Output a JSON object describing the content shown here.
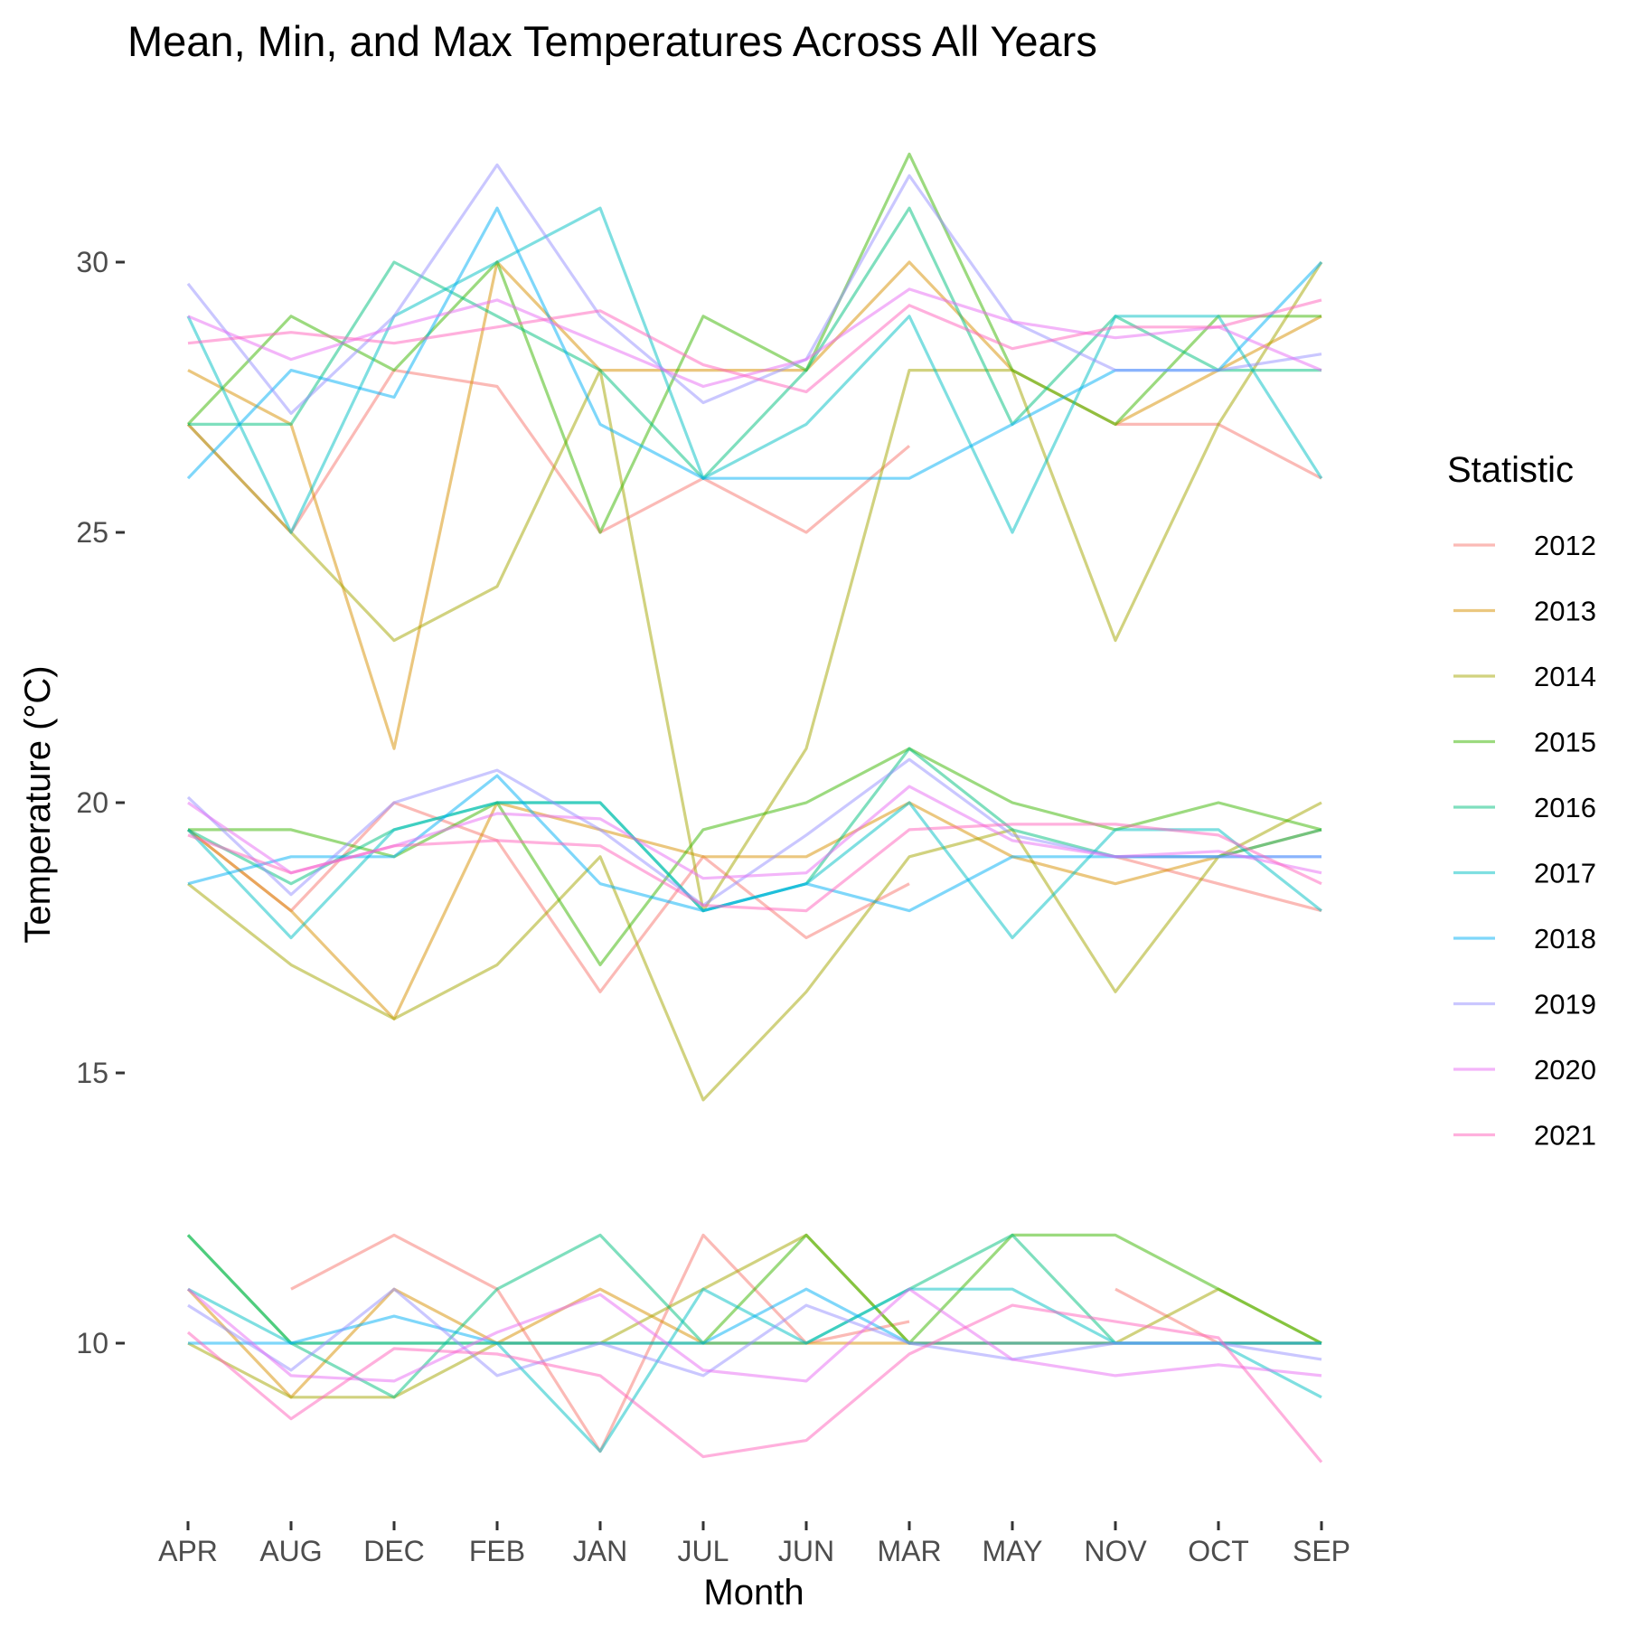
{
  "chart_data": {
    "type": "line",
    "title": "Mean, Min, and Max Temperatures Across All Years",
    "xlabel": "Month",
    "ylabel": "Temperature (°C)",
    "ylim": [
      7.2,
      33.6
    ],
    "yticks": [
      10,
      15,
      20,
      25,
      30
    ],
    "grid": false,
    "legend": {
      "title": "Statistic",
      "position": "right"
    },
    "categories": [
      "APR",
      "AUG",
      "DEC",
      "FEB",
      "JAN",
      "JUL",
      "JUN",
      "MAR",
      "MAY",
      "NOV",
      "OCT",
      "SEP"
    ],
    "series": [
      {
        "name": "2012",
        "color": "#F8766D",
        "max": [
          27,
          25,
          28,
          27.7,
          25,
          26,
          25,
          26.6,
          null,
          27,
          27,
          26
        ],
        "mean": [
          19.5,
          18,
          20,
          19.3,
          16.5,
          19,
          17.5,
          18.5,
          null,
          19,
          18.5,
          18
        ],
        "min": [
          null,
          11,
          12,
          11,
          8,
          12,
          10,
          10.4,
          null,
          11,
          10,
          10
        ]
      },
      {
        "name": "2013",
        "color": "#D89000",
        "max": [
          28,
          27,
          21,
          30,
          28,
          28,
          28,
          30,
          28,
          27,
          28,
          29
        ],
        "mean": [
          19.5,
          18,
          16,
          20,
          19.5,
          19,
          19,
          20,
          19,
          18.5,
          19,
          19.5
        ],
        "min": [
          11,
          9,
          11,
          10,
          11,
          10,
          10,
          10,
          10,
          10,
          10,
          10
        ]
      },
      {
        "name": "2014",
        "color": "#A3A500",
        "max": [
          27,
          25,
          23,
          24,
          28,
          18,
          21,
          28,
          28,
          23,
          27,
          30
        ],
        "mean": [
          18.5,
          17,
          16,
          17,
          19,
          14.5,
          16.5,
          19,
          19.5,
          16.5,
          19,
          20
        ],
        "min": [
          10,
          9,
          9,
          10,
          10,
          11,
          12,
          10,
          10,
          10,
          11,
          10
        ]
      },
      {
        "name": "2015",
        "color": "#39B600",
        "max": [
          27,
          29,
          28,
          30,
          25,
          29,
          28,
          32,
          28,
          27,
          29,
          29
        ],
        "mean": [
          19.5,
          19.5,
          19,
          20,
          17,
          19.5,
          20,
          21,
          20,
          19.5,
          20,
          19.5
        ],
        "min": [
          12,
          10,
          10,
          10,
          10,
          10,
          12,
          10,
          12,
          12,
          11,
          10
        ]
      },
      {
        "name": "2016",
        "color": "#00BF7D",
        "max": [
          27,
          27,
          30,
          29,
          28,
          26,
          28,
          31,
          27,
          29,
          28,
          28
        ],
        "mean": [
          19.5,
          18.5,
          19.5,
          20,
          20,
          18,
          18.5,
          21,
          19.5,
          19,
          19,
          19.5
        ],
        "min": [
          12,
          10,
          9,
          11,
          12,
          10,
          10,
          11,
          12,
          10,
          10,
          10
        ]
      },
      {
        "name": "2017",
        "color": "#00BFC4",
        "max": [
          29,
          25,
          29,
          30,
          31,
          26,
          27,
          29,
          25,
          29,
          29,
          26
        ],
        "mean": [
          19.5,
          17.5,
          19.5,
          20,
          20,
          18,
          18.5,
          20,
          17.5,
          19.5,
          19.5,
          18
        ],
        "min": [
          11,
          10,
          10,
          10,
          8,
          11,
          10,
          11,
          11,
          10,
          10,
          9
        ]
      },
      {
        "name": "2018",
        "color": "#00B0F6",
        "max": [
          26,
          28,
          27.5,
          31,
          27,
          26,
          26,
          26,
          27,
          28,
          28,
          30
        ],
        "mean": [
          18.5,
          19,
          19,
          20.5,
          18.5,
          18,
          18.5,
          18,
          19,
          19,
          19,
          19
        ],
        "min": [
          10,
          10,
          10.5,
          10,
          10,
          10,
          11,
          10,
          10,
          10,
          10,
          10
        ]
      },
      {
        "name": "2019",
        "color": "#9590FF",
        "max": [
          29.6,
          27.2,
          29,
          31.8,
          29,
          27.4,
          28.2,
          31.6,
          28.9,
          28,
          28,
          28.3
        ],
        "mean": [
          20.1,
          18.3,
          20,
          20.6,
          19.5,
          18.1,
          19.4,
          20.8,
          19.4,
          19,
          19,
          19
        ],
        "min": [
          10.7,
          9.5,
          11,
          9.4,
          10,
          9.4,
          10.7,
          10,
          9.7,
          10,
          10,
          9.7
        ]
      },
      {
        "name": "2020",
        "color": "#E76BF3",
        "max": [
          29,
          28.2,
          28.8,
          29.3,
          28.5,
          27.7,
          28.2,
          29.5,
          28.9,
          28.6,
          28.8,
          28
        ],
        "mean": [
          20,
          18.7,
          19.2,
          19.8,
          19.7,
          18.6,
          18.7,
          20.3,
          19.3,
          19,
          19.1,
          18.7
        ],
        "min": [
          11,
          9.4,
          9.3,
          10.2,
          10.9,
          9.5,
          9.3,
          11,
          9.7,
          9.4,
          9.6,
          9.4
        ]
      },
      {
        "name": "2021",
        "color": "#FF62BC",
        "max": [
          28.5,
          28.7,
          28.5,
          28.8,
          29.1,
          28.1,
          27.6,
          29.2,
          28.4,
          28.8,
          28.8,
          29.3
        ],
        "mean": [
          19.4,
          18.7,
          19.2,
          19.3,
          19.2,
          18.1,
          18,
          19.5,
          19.6,
          19.6,
          19.4,
          18.5
        ],
        "min": [
          10.2,
          8.6,
          9.9,
          9.8,
          9.4,
          7.9,
          8.2,
          9.8,
          10.7,
          10.4,
          10.1,
          7.8
        ]
      }
    ]
  }
}
